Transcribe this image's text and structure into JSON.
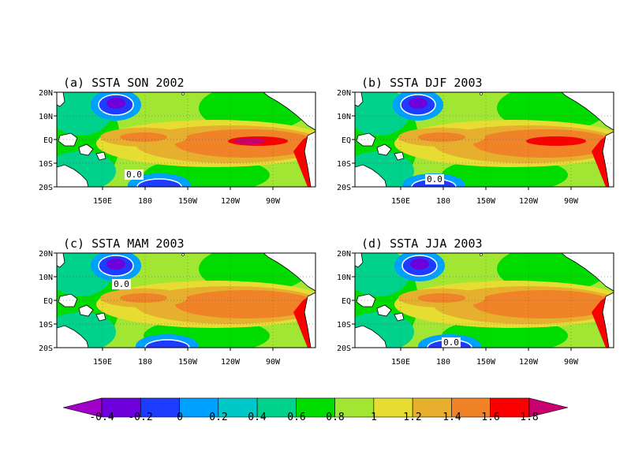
{
  "panels": [
    {
      "title": "(a) SSTA SON 2002",
      "x_labels": [
        "150E",
        "180",
        "150W",
        "120W",
        "90W"
      ],
      "y_labels": [
        "20N",
        "10N",
        "EQ",
        "10S",
        "20S"
      ],
      "contour_labels": [
        "0.0"
      ]
    },
    {
      "title": "(b) SSTA DJF 2003",
      "x_labels": [
        "150E",
        "180",
        "150W",
        "120W",
        "90W"
      ],
      "y_labels": [
        "20N",
        "10N",
        "EQ",
        "10S",
        "20S"
      ],
      "contour_labels": [
        "0.0"
      ]
    },
    {
      "title": "(c) SSTA MAM 2003",
      "x_labels": [
        "150E",
        "180",
        "150W",
        "120W",
        "90W"
      ],
      "y_labels": [
        "20N",
        "10N",
        "EQ",
        "10S",
        "20S"
      ],
      "contour_labels": [
        "0.0"
      ]
    },
    {
      "title": "(d) SSTA JJA 2003",
      "x_labels": [
        "150E",
        "180",
        "150W",
        "120W",
        "90W"
      ],
      "y_labels": [
        "20N",
        "10N",
        "EQ",
        "10S",
        "20S"
      ],
      "contour_labels": [
        "0.0"
      ]
    }
  ],
  "colorbar": {
    "labels": [
      "-0.4",
      "-0.2",
      "0",
      "0.2",
      "0.4",
      "0.6",
      "0.8",
      "1",
      "1.2",
      "1.4",
      "1.6",
      "1.8"
    ],
    "colors": [
      "#a000c8",
      "#6e00dc",
      "#1e3cff",
      "#00a0ff",
      "#00c8c8",
      "#00d28c",
      "#00dc00",
      "#a0e632",
      "#e6dc32",
      "#e6af2d",
      "#f08228",
      "#fa0000",
      "#c8006e"
    ]
  },
  "colors": {
    "land": "#ffffff",
    "coast": "#000000",
    "zero_contour": "#ffffff"
  }
}
